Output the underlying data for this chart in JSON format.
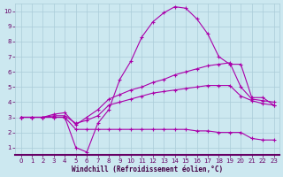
{
  "xlabel": "Windchill (Refroidissement éolien,°C)",
  "bg_color": "#cce8f0",
  "grid_color": "#aaccd8",
  "line_color": "#aa00aa",
  "xlim": [
    -0.5,
    23.5
  ],
  "ylim": [
    0.5,
    10.5
  ],
  "xticks": [
    0,
    1,
    2,
    3,
    4,
    5,
    6,
    7,
    8,
    9,
    10,
    11,
    12,
    13,
    14,
    15,
    16,
    17,
    18,
    19,
    20,
    21,
    22,
    23
  ],
  "yticks": [
    1,
    2,
    3,
    4,
    5,
    6,
    7,
    8,
    9,
    10
  ],
  "line1_x": [
    0,
    1,
    2,
    3,
    4,
    5,
    6,
    7,
    8,
    9,
    10,
    11,
    12,
    13,
    14,
    15,
    16,
    17,
    18,
    19,
    20,
    21,
    22,
    23
  ],
  "line1_y": [
    3.0,
    3.0,
    3.0,
    3.2,
    3.3,
    2.5,
    3.0,
    3.5,
    4.2,
    4.5,
    4.8,
    5.0,
    5.3,
    5.5,
    5.8,
    6.0,
    6.2,
    6.4,
    6.5,
    6.6,
    5.0,
    4.2,
    4.1,
    4.0
  ],
  "line2_x": [
    0,
    1,
    2,
    3,
    4,
    5,
    6,
    7,
    8,
    9,
    10,
    11,
    12,
    13,
    14,
    15,
    16,
    17,
    18,
    19,
    20,
    21,
    22,
    23
  ],
  "line2_y": [
    3.0,
    3.0,
    3.0,
    3.0,
    3.0,
    1.0,
    0.7,
    2.6,
    3.5,
    5.5,
    6.7,
    8.3,
    9.3,
    9.9,
    10.3,
    10.2,
    9.5,
    8.5,
    7.0,
    6.5,
    6.5,
    4.3,
    4.3,
    3.8
  ],
  "line3_x": [
    0,
    1,
    2,
    3,
    4,
    5,
    6,
    7,
    8,
    9,
    10,
    11,
    12,
    13,
    14,
    15,
    16,
    17,
    18,
    19,
    20,
    21,
    22,
    23
  ],
  "line3_y": [
    3.0,
    3.0,
    3.0,
    3.1,
    3.1,
    2.6,
    2.8,
    3.1,
    3.8,
    4.0,
    4.2,
    4.4,
    4.6,
    4.7,
    4.8,
    4.9,
    5.0,
    5.1,
    5.1,
    5.1,
    4.4,
    4.1,
    3.9,
    3.8
  ],
  "line4_x": [
    0,
    1,
    2,
    3,
    4,
    5,
    6,
    7,
    8,
    9,
    10,
    11,
    12,
    13,
    14,
    15,
    16,
    17,
    18,
    19,
    20,
    21,
    22,
    23
  ],
  "line4_y": [
    3.0,
    3.0,
    3.0,
    3.0,
    3.0,
    2.2,
    2.2,
    2.2,
    2.2,
    2.2,
    2.2,
    2.2,
    2.2,
    2.2,
    2.2,
    2.2,
    2.1,
    2.1,
    2.0,
    2.0,
    2.0,
    1.6,
    1.5,
    1.5
  ]
}
